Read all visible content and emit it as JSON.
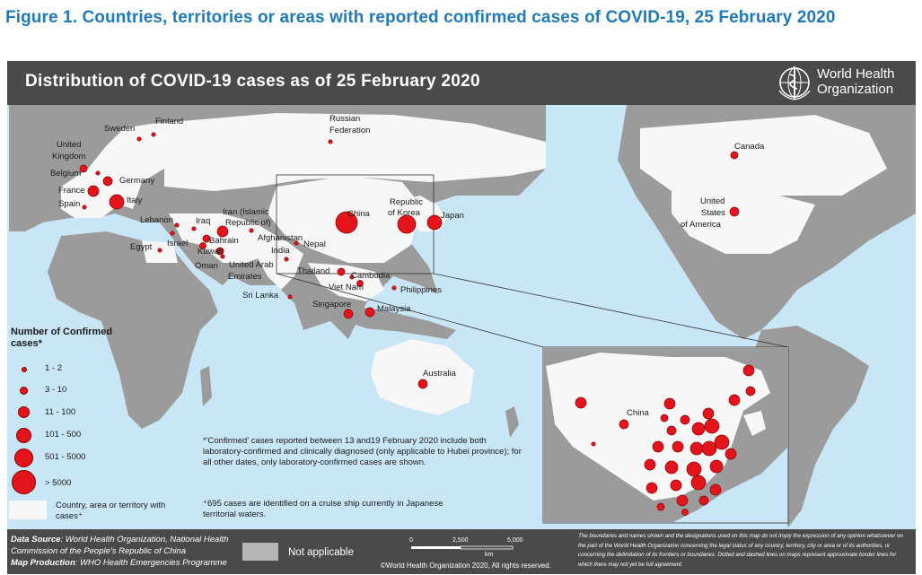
{
  "figure_title": "Figure 1. Countries, territories or areas with reported confirmed cases of COVID-19, 25 February 2020",
  "map_title": "Distribution of COVID-19 cases as of 25 February 2020",
  "who_logo": {
    "line1": "World Health",
    "line2": "Organization"
  },
  "colors": {
    "ocean": "#c8e6f5",
    "affected": "#f7f7f7",
    "land": "#9b9b9b",
    "not_applicable": "#b5b5b5",
    "bubble": "#e3141b",
    "header": "#4a4a4a",
    "title_blue": "#1f7ab8"
  },
  "country_labels": [
    {
      "id": "sweden",
      "text": "Sweden"
    },
    {
      "id": "finland",
      "text": "Finland"
    },
    {
      "id": "russia1",
      "text": "Russian"
    },
    {
      "id": "russia2",
      "text": "Federation"
    },
    {
      "id": "uk1",
      "text": "United"
    },
    {
      "id": "uk2",
      "text": "Kingdom"
    },
    {
      "id": "belgium",
      "text": "Belgium"
    },
    {
      "id": "germany",
      "text": "Germany"
    },
    {
      "id": "france",
      "text": "France"
    },
    {
      "id": "italy",
      "text": "Italy"
    },
    {
      "id": "spain",
      "text": "Spain"
    },
    {
      "id": "lebanon",
      "text": "Lebanon"
    },
    {
      "id": "iraq",
      "text": "Iraq"
    },
    {
      "id": "iran1",
      "text": "Iran (Islamic"
    },
    {
      "id": "iran2",
      "text": "Republic of)"
    },
    {
      "id": "bahrain",
      "text": "Bahrain"
    },
    {
      "id": "kuwait",
      "text": "Kuwait"
    },
    {
      "id": "israel",
      "text": "Israel"
    },
    {
      "id": "egypt",
      "text": "Egypt"
    },
    {
      "id": "oman",
      "text": "Oman"
    },
    {
      "id": "uae1",
      "text": "United Arab"
    },
    {
      "id": "uae2",
      "text": "Emirates"
    },
    {
      "id": "afghanistan",
      "text": "Afghanistan"
    },
    {
      "id": "india",
      "text": "India"
    },
    {
      "id": "nepal",
      "text": "Nepal"
    },
    {
      "id": "srilanka",
      "text": "Sri Lanka"
    },
    {
      "id": "china",
      "text": "China"
    },
    {
      "id": "korea1",
      "text": "Republic"
    },
    {
      "id": "korea2",
      "text": "of Korea"
    },
    {
      "id": "japan",
      "text": "Japan"
    },
    {
      "id": "thailand",
      "text": "Thailand"
    },
    {
      "id": "cambodia",
      "text": "Cambodia"
    },
    {
      "id": "vietnam",
      "text": "Viet Nam"
    },
    {
      "id": "philippines",
      "text": "Philippines"
    },
    {
      "id": "singapore",
      "text": "Singapore"
    },
    {
      "id": "malaysia",
      "text": "Malaysia"
    },
    {
      "id": "australia",
      "text": "Australia"
    },
    {
      "id": "canada",
      "text": "Canada"
    },
    {
      "id": "usa1",
      "text": "United"
    },
    {
      "id": "usa2",
      "text": "States"
    },
    {
      "id": "usa3",
      "text": "of America"
    },
    {
      "id": "inset_china",
      "text": "China"
    }
  ],
  "legend": {
    "title": "Number of Confirmed cases*",
    "items": [
      "1 - 2",
      "3 - 10",
      "11 - 100",
      "101 - 500",
      "501 - 5000",
      "> 5000"
    ],
    "white_label": "Country, area or territory with cases⁺"
  },
  "notes": {
    "confirmed": "*'Confirmed' cases reported between 13 and19 February 2020 include both laboratory-confirmed and clinically diagnosed (only applicable to Hubei province); for all other dates, only laboratory-confirmed cases are shown.",
    "cruise": "⁺695 cases are identified on a cruise ship currently in Japanese territorial waters."
  },
  "footer": {
    "source_label": "Data Source",
    "source_text": ": World Health Organization, National Health Commission of the People's Republic of China",
    "production_label": "Map Production",
    "production_text": ": WHO Health Emergencies Programme",
    "not_applicable": "Not applicable",
    "scale": {
      "zero": "0",
      "mid": "2,500",
      "max": "5,000",
      "unit": "km"
    },
    "copyright": "©World Health Organization 2020, All rights reserved.",
    "disclaimer": "The boundaries and names shown and the designations used on this map do not imply the expression of any opinion whatsoever on the part of the World Health Organization concerning the legal status of any country, territory, city or area or of its authorities, or concerning the delimitation of its frontiers or boundaries. Dotted and dashed lines on maps represent approximate border lines for which there may not yet be full agreement."
  }
}
